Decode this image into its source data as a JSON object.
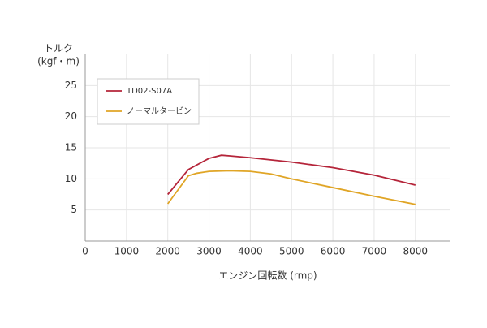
{
  "chart_data": {
    "type": "line",
    "ylabel": [
      "トルク",
      "(kgf・m)"
    ],
    "xlabel": "エンジン回転数 (rmp)",
    "series": [
      {
        "name": "TD02-S07A",
        "color": "#b5253a",
        "x": [
          2000,
          2500,
          3000,
          3300,
          3500,
          4000,
          5000,
          6000,
          7000,
          8000
        ],
        "values": [
          7.5,
          11.5,
          13.3,
          13.8,
          13.7,
          13.4,
          12.7,
          11.8,
          10.6,
          9.0
        ]
      },
      {
        "name": "ノーマルタービン",
        "color": "#e0a526",
        "x": [
          2000,
          2500,
          2700,
          3000,
          3500,
          4000,
          4500,
          5000,
          6000,
          7000,
          8000
        ],
        "values": [
          6.0,
          10.5,
          10.9,
          11.2,
          11.3,
          11.2,
          10.8,
          10.0,
          8.6,
          7.2,
          5.9
        ]
      }
    ],
    "xlim": [
      0,
      8850
    ],
    "xticks": [
      0,
      1000,
      2000,
      3000,
      4000,
      5000,
      6000,
      7000,
      8000
    ],
    "ylim": [
      0,
      30
    ],
    "yticks": [
      5,
      10,
      15,
      20,
      25
    ],
    "grid": true,
    "legend": "upper left"
  }
}
